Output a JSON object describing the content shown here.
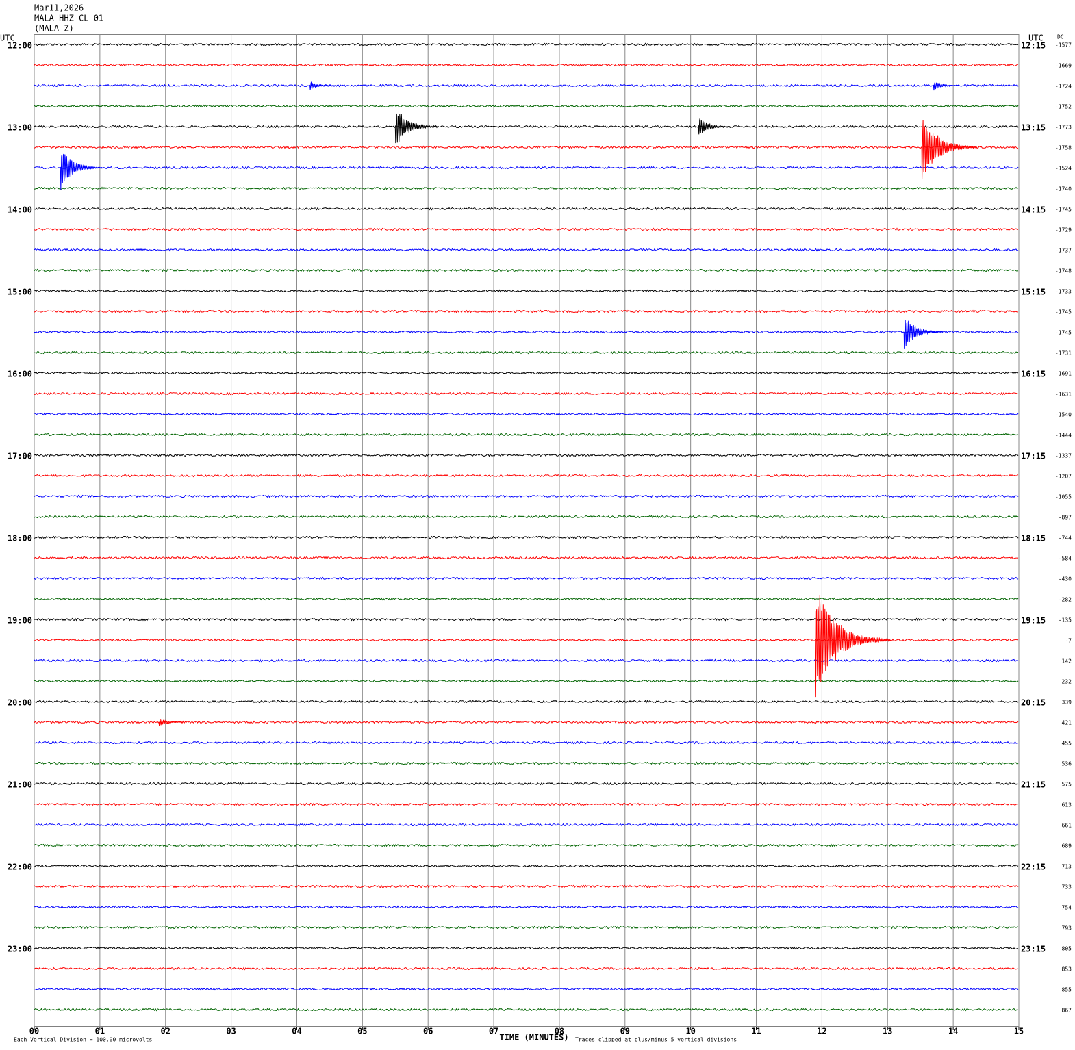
{
  "chart_data": {
    "type": "helicorder",
    "header": [
      "Mar11,2026",
      "MALA HHZ CL 01",
      "(MALA Z)"
    ],
    "left_axis_title": "UTC",
    "right_axis_title": "UTC",
    "dc_title": "DC",
    "left_times": [
      "12:00",
      "13:00",
      "14:00",
      "15:00",
      "16:00",
      "17:00",
      "18:00",
      "19:00",
      "20:00",
      "21:00",
      "22:00",
      "23:00"
    ],
    "right_times": [
      "12:15",
      "13:15",
      "14:15",
      "15:15",
      "16:15",
      "17:15",
      "18:15",
      "19:15",
      "20:15",
      "21:15",
      "22:15",
      "23:15"
    ],
    "dc_offsets": [
      -1577,
      -1669,
      -1724,
      -1752,
      -1773,
      -1758,
      -1524,
      -1740,
      -1745,
      -1729,
      -1737,
      -1748,
      -1733,
      -1745,
      -1745,
      -1731,
      -1691,
      -1631,
      -1540,
      -1444,
      -1337,
      -1207,
      -1055,
      -897,
      -744,
      -584,
      -430,
      -282,
      -135,
      -7,
      142,
      232,
      339,
      421,
      455,
      536,
      575,
      613,
      661,
      689,
      713,
      733,
      754,
      793,
      805,
      853,
      855,
      867
    ],
    "trace_colors": [
      "#000000",
      "#ff0000",
      "#0000ff",
      "#006400"
    ],
    "xlabel": "TIME (MINUTES)",
    "xlim": [
      0,
      15
    ],
    "xticks": [
      {
        "value": 0,
        "label": "00"
      },
      {
        "value": 1,
        "label": "01"
      },
      {
        "value": 2,
        "label": "02"
      },
      {
        "value": 3,
        "label": "03"
      },
      {
        "value": 4,
        "label": "04"
      },
      {
        "value": 5,
        "label": "05"
      },
      {
        "value": 6,
        "label": "06"
      },
      {
        "value": 7,
        "label": "07"
      },
      {
        "value": 8,
        "label": "08"
      },
      {
        "value": 9,
        "label": "09"
      },
      {
        "value": 10,
        "label": "10"
      },
      {
        "value": 11,
        "label": "11"
      },
      {
        "value": 12,
        "label": "12"
      },
      {
        "value": 13,
        "label": "13"
      },
      {
        "value": 14,
        "label": "14"
      },
      {
        "value": 15,
        "label": "15"
      }
    ],
    "grid": true,
    "scale_note": "Each Vertical Division =  100.00 microvolts",
    "clip_note": "Traces clipped at plus/minus 5 vertical divisions",
    "events": [
      {
        "trace": 4,
        "minute": 5.5,
        "amplitude": 2
      },
      {
        "trace": 4,
        "minute": 10.12,
        "amplitude": 1
      },
      {
        "trace": 5,
        "minute": 13.52,
        "amplitude": 3.2
      },
      {
        "trace": 6,
        "minute": 0.4,
        "amplitude": 2
      },
      {
        "trace": 2,
        "minute": 13.7,
        "amplitude": 0.5
      },
      {
        "trace": 2,
        "minute": 4.2,
        "amplitude": 0.4
      },
      {
        "trace": 14,
        "minute": 13.25,
        "amplitude": 1.7
      },
      {
        "trace": 29,
        "minute": 11.9,
        "amplitude": 5
      },
      {
        "trace": 33,
        "minute": 1.9,
        "amplitude": 0.4
      }
    ]
  }
}
